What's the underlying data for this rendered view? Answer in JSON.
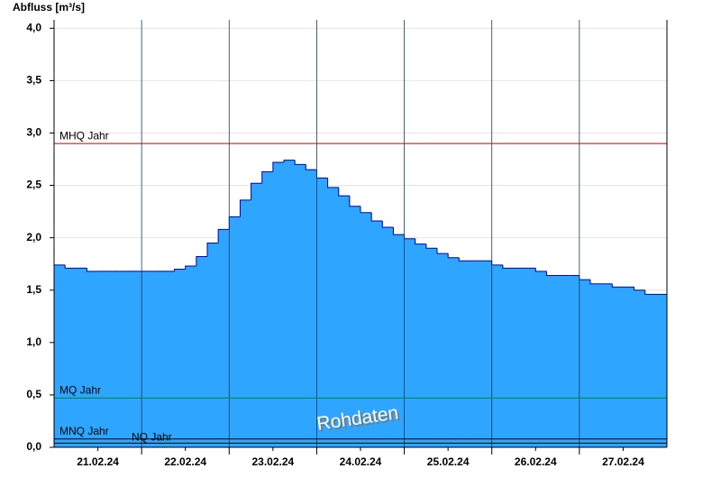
{
  "chart_data": {
    "type": "step-area",
    "y_label": "Abfluss [m³/s]",
    "annotation": "Rohdaten",
    "x": [
      0,
      0.125,
      0.25,
      0.375,
      0.5,
      0.625,
      0.75,
      0.875,
      1,
      1.125,
      1.25,
      1.375,
      1.5,
      1.625,
      1.75,
      1.875,
      2,
      2.125,
      2.25,
      2.375,
      2.5,
      2.625,
      2.75,
      2.875,
      3,
      3.125,
      3.25,
      3.375,
      3.5,
      3.625,
      3.75,
      3.875,
      4,
      4.125,
      4.25,
      4.375,
      4.5,
      4.625,
      4.75,
      4.875,
      5,
      5.125,
      5.25,
      5.375,
      5.5,
      5.625,
      5.75,
      5.875,
      6,
      6.125,
      6.25,
      6.375,
      6.5,
      6.625,
      6.75,
      6.875
    ],
    "values": [
      1.74,
      1.71,
      1.71,
      1.68,
      1.68,
      1.68,
      1.68,
      1.68,
      1.68,
      1.68,
      1.68,
      1.7,
      1.73,
      1.82,
      1.95,
      2.08,
      2.2,
      2.36,
      2.52,
      2.63,
      2.72,
      2.74,
      2.7,
      2.65,
      2.57,
      2.48,
      2.4,
      2.3,
      2.24,
      2.16,
      2.1,
      2.03,
      1.99,
      1.94,
      1.9,
      1.85,
      1.81,
      1.78,
      1.78,
      1.78,
      1.74,
      1.71,
      1.71,
      1.71,
      1.68,
      1.64,
      1.64,
      1.64,
      1.6,
      1.56,
      1.56,
      1.53,
      1.53,
      1.5,
      1.46,
      1.46
    ],
    "color": "#2ea6ff",
    "line_color": "#0000b0",
    "xlim": [
      0,
      7
    ],
    "xticks": [
      {
        "value": 0.5,
        "label": "21.02.24"
      },
      {
        "value": 1.5,
        "label": "22.02.24"
      },
      {
        "value": 2.5,
        "label": "23.02.24"
      },
      {
        "value": 3.5,
        "label": "24.02.24"
      },
      {
        "value": 4.5,
        "label": "25.02.24"
      },
      {
        "value": 5.5,
        "label": "26.02.24"
      },
      {
        "value": 6.5,
        "label": "27.02.24"
      }
    ],
    "xgrid": [
      1,
      2,
      3,
      4,
      5,
      6
    ],
    "ylim": [
      0,
      4.08
    ],
    "yticks": [
      {
        "value": 0,
        "label": "0,0"
      },
      {
        "value": 0.5,
        "label": "0,5"
      },
      {
        "value": 1,
        "label": "1,0"
      },
      {
        "value": 1.5,
        "label": "1,5"
      },
      {
        "value": 2,
        "label": "2,0"
      },
      {
        "value": 2.5,
        "label": "2,5"
      },
      {
        "value": 3,
        "label": "3,0"
      },
      {
        "value": 3.5,
        "label": "3,5"
      },
      {
        "value": 4,
        "label": "4,0"
      }
    ],
    "grid": true,
    "reference_lines": [
      {
        "label": "MHQ Jahr",
        "value": 2.9,
        "color": "#cc0000"
      },
      {
        "label": "MQ Jahr",
        "value": 0.47,
        "color": "#008040"
      },
      {
        "label": "MNQ Jahr",
        "value": 0.08,
        "color": "#000000"
      },
      {
        "label": "NQ Jahr",
        "value": 0.04,
        "color": "#000000"
      }
    ]
  }
}
